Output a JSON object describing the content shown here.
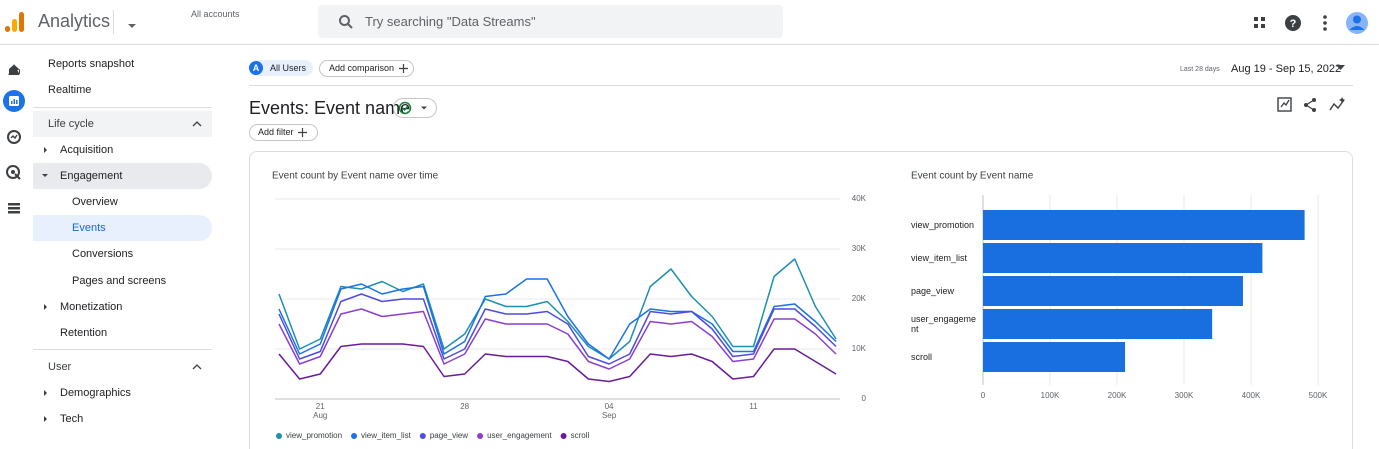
{
  "topbar": {
    "product": "Analytics",
    "account": "All accounts",
    "search_placeholder": "Try searching \"Data Streams\""
  },
  "nav": [
    "Reports snapshot",
    "Realtime",
    "Life cycle",
    "Acquisition",
    "Engagement",
    "Overview",
    "Events",
    "Conversions",
    "Pages and screens",
    "Monetization",
    "Retention",
    "User",
    "Demographics",
    "Tech"
  ],
  "toolbar": {
    "segment_badge": "A",
    "segment": "All Users",
    "add_comparison": "Add comparison",
    "date_range_label": "Last 28 days",
    "date_range": "Aug 19 - Sep 15, 2022",
    "report_title": "Events: Event name",
    "add_filter": "Add filter"
  },
  "chart_data": [
    {
      "type": "line",
      "title": "Event count by Event name over time",
      "categories": [
        null,
        null,
        "21\nAug",
        null,
        null,
        null,
        null,
        null,
        null,
        "28",
        null,
        null,
        null,
        null,
        null,
        null,
        "04\nSep",
        null,
        null,
        null,
        null,
        null,
        null,
        "11",
        null,
        null,
        null,
        null
      ],
      "series": [
        {
          "name": "view_promotion",
          "color": "#1e8fb0",
          "values": [
            21000,
            10000,
            12000,
            22500,
            22000,
            23500,
            21500,
            23000,
            10000,
            13000,
            20000,
            18500,
            18500,
            19500,
            15500,
            10500,
            8000,
            11500,
            22500,
            26000,
            20500,
            16500,
            10500,
            10500,
            24500,
            28000,
            18500,
            12000
          ]
        },
        {
          "name": "view_item_list",
          "color": "#1a73e8",
          "values": [
            18000,
            9000,
            11000,
            22000,
            23000,
            21000,
            22000,
            22500,
            9000,
            11500,
            20500,
            21000,
            24000,
            24000,
            16500,
            11000,
            8000,
            15000,
            18000,
            17500,
            17500,
            15000,
            9500,
            9500,
            18500,
            19000,
            15500,
            11500
          ]
        },
        {
          "name": "page_view",
          "color": "#4f4ce0",
          "values": [
            17000,
            8000,
            9500,
            19500,
            21000,
            19500,
            20000,
            20000,
            8000,
            10000,
            18000,
            17000,
            17000,
            17500,
            15000,
            8500,
            7000,
            9000,
            17500,
            17000,
            17500,
            14000,
            8500,
            9000,
            18000,
            18000,
            14500,
            10500
          ]
        },
        {
          "name": "user_engagement",
          "color": "#8b3fd1",
          "values": [
            15000,
            7000,
            8500,
            17000,
            18000,
            16500,
            17000,
            17500,
            7000,
            9000,
            16000,
            15000,
            15000,
            15000,
            13000,
            7500,
            6000,
            8000,
            15500,
            15000,
            15500,
            12500,
            7500,
            8000,
            16000,
            16000,
            13000,
            9000
          ]
        },
        {
          "name": "scroll",
          "color": "#6a1b9a",
          "values": [
            9000,
            4000,
            5000,
            10500,
            11000,
            11000,
            11000,
            10500,
            4500,
            5000,
            9000,
            8500,
            8500,
            8500,
            7500,
            4000,
            3500,
            4500,
            9000,
            8500,
            9000,
            7500,
            4000,
            4500,
            10000,
            10000,
            7500,
            5000
          ]
        }
      ],
      "ylim": [
        0,
        40000
      ],
      "yticks": [
        0,
        {
          "value": 10000,
          "label": "10K"
        },
        {
          "value": 20000,
          "label": "20K"
        },
        {
          "value": 30000,
          "label": "30K"
        },
        {
          "value": 40000,
          "label": "40K"
        }
      ],
      "grid": true,
      "legend": "bottom"
    },
    {
      "type": "hbar",
      "title": "Event count by Event name",
      "categories": [
        "view_promotion",
        "view_item_list",
        "page_view",
        "user_engagement",
        "scroll"
      ],
      "values": [
        480000,
        417000,
        388000,
        342000,
        212000
      ],
      "color": "#1a6fe0",
      "xlim": [
        0,
        500000
      ],
      "xticks": [
        0,
        {
          "value": 100000,
          "label": "100K"
        },
        {
          "value": 200000,
          "label": "200K"
        },
        {
          "value": 300000,
          "label": "300K"
        },
        {
          "value": 400000,
          "label": "400K"
        },
        {
          "value": 500000,
          "label": "500K"
        }
      ],
      "grid": true
    }
  ]
}
